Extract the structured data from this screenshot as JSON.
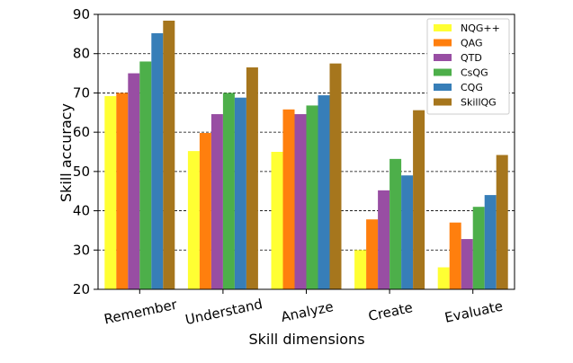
{
  "chart_data": {
    "type": "bar",
    "title": "",
    "xlabel": "Skill dimensions",
    "ylabel": "Skill accuracy",
    "ylim": [
      20,
      90
    ],
    "yticks": [
      20,
      30,
      40,
      50,
      60,
      70,
      80,
      90
    ],
    "grid": "horizontal dashed",
    "legend_position": "top-right",
    "categories": [
      "Remember",
      "Understand",
      "Analyze",
      "Create",
      "Evaluate"
    ],
    "series": [
      {
        "name": "NQG++",
        "color": "#ffff33",
        "values": [
          69.2,
          55.2,
          55.0,
          30.0,
          25.6
        ]
      },
      {
        "name": "QAG",
        "color": "#ff7f0e",
        "values": [
          70.0,
          59.8,
          65.8,
          37.8,
          37.0
        ]
      },
      {
        "name": "QTD",
        "color": "#984ea3",
        "values": [
          75.0,
          64.6,
          64.6,
          45.2,
          32.8
        ]
      },
      {
        "name": "CsQG",
        "color": "#4daf4a",
        "values": [
          78.0,
          70.0,
          66.8,
          53.2,
          41.0
        ]
      },
      {
        "name": "CQG",
        "color": "#377eb8",
        "values": [
          85.2,
          68.8,
          69.4,
          49.0,
          44.0
        ]
      },
      {
        "name": "SkillQG",
        "color": "#a6761d",
        "values": [
          88.4,
          76.5,
          77.5,
          65.6,
          54.2
        ]
      }
    ]
  }
}
